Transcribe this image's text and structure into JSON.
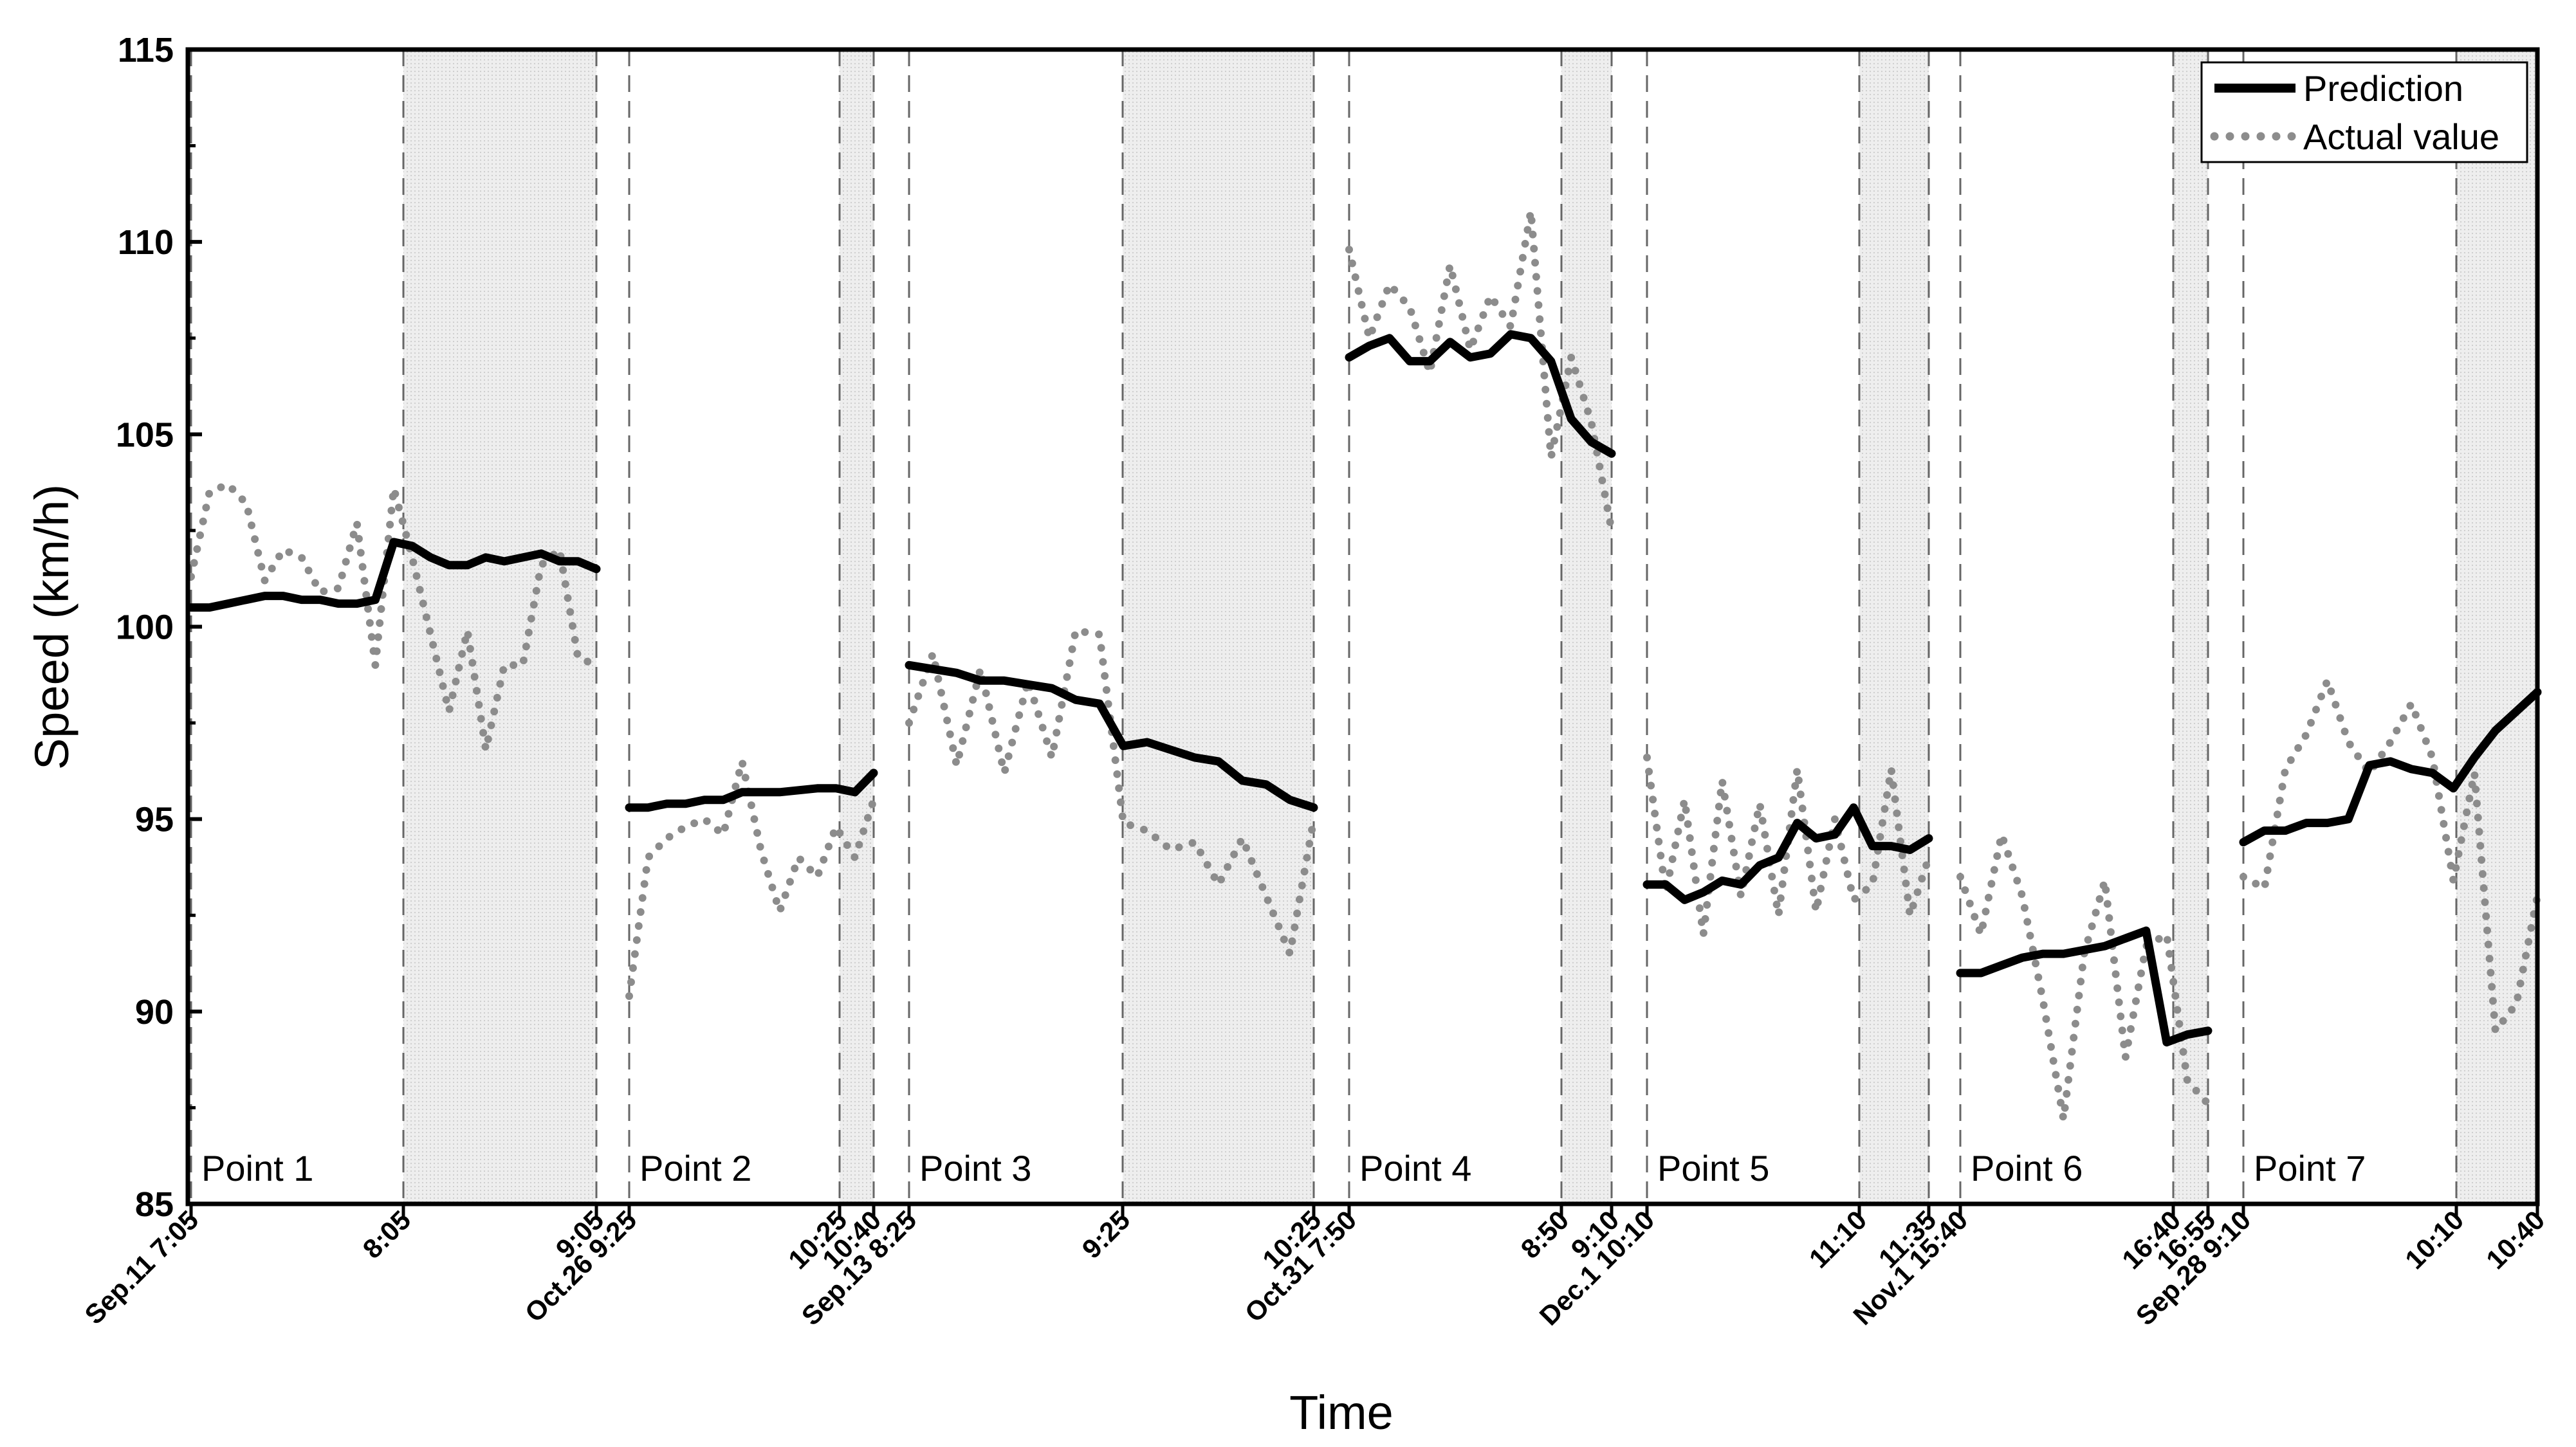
{
  "chart_data": {
    "type": "line",
    "xlabel": "Time",
    "ylabel": "Speed (km/h)",
    "ylim": [
      85,
      115
    ],
    "yticks": [
      "85",
      "90",
      "95",
      "100",
      "105",
      "110",
      "115"
    ],
    "grid": false,
    "legend": {
      "placement": "top-right",
      "entries": [
        {
          "name": "Prediction",
          "style": "solid"
        },
        {
          "name": "Actual value",
          "style": "dotted"
        }
      ]
    },
    "colors": {
      "prediction": "#000000",
      "actual": "#8c8c8c",
      "shade": "#e8e8e8"
    },
    "segments": [
      {
        "label": "Point 1",
        "ticks": [
          "Sep.11 7:05",
          "8:05",
          "9:05"
        ],
        "prediction": [
          100.5,
          100.5,
          100.6,
          100.7,
          100.8,
          100.8,
          100.7,
          100.7,
          100.6,
          100.6,
          100.7,
          102.2,
          102.1,
          101.8,
          101.6,
          101.6,
          101.8,
          101.7,
          101.8,
          101.9,
          101.7,
          101.7,
          101.5
        ],
        "actual": [
          101.3,
          103.5,
          103.7,
          103.2,
          101.2,
          102.0,
          101.8,
          100.9,
          101.0,
          102.7,
          99.0,
          103.6,
          101.8,
          99.8,
          97.8,
          99.9,
          96.8,
          99.0,
          99.0,
          101.6,
          102.0,
          99.2,
          99.0
        ]
      },
      {
        "label": "Point 2",
        "ticks": [
          "Oct.26 9:25",
          "10:25",
          "10:40"
        ],
        "prediction": [
          95.3,
          95.3,
          95.4,
          95.4,
          95.5,
          95.5,
          95.7,
          95.7,
          95.7,
          95.75,
          95.8,
          95.8,
          95.7,
          96.2
        ],
        "actual": [
          90.4,
          94.0,
          94.5,
          94.8,
          95.0,
          94.6,
          96.5,
          94.2,
          92.6,
          94.0,
          93.5,
          94.8,
          94.0,
          95.5
        ]
      },
      {
        "label": "Point 3",
        "ticks": [
          "Sep.13 8:25",
          "9:25",
          "10:25"
        ],
        "prediction": [
          99.0,
          98.9,
          98.8,
          98.6,
          98.6,
          98.5,
          98.4,
          98.1,
          98.0,
          96.9,
          97.0,
          96.8,
          96.6,
          96.5,
          96.0,
          95.9,
          95.5,
          95.3
        ],
        "actual": [
          97.5,
          99.3,
          96.4,
          98.9,
          96.2,
          98.6,
          96.6,
          99.9,
          99.8,
          94.9,
          94.7,
          94.2,
          94.4,
          93.3,
          94.5,
          93.0,
          91.5,
          95.0
        ]
      },
      {
        "label": "Point 4",
        "ticks": [
          "Oct.31 7:50",
          "8:50",
          "9:10"
        ],
        "prediction": [
          107.0,
          107.3,
          107.5,
          106.9,
          106.9,
          107.4,
          107.0,
          107.1,
          107.6,
          107.5,
          106.9,
          105.4,
          104.8,
          104.5
        ],
        "actual": [
          109.8,
          107.5,
          108.9,
          108.3,
          106.6,
          109.4,
          107.2,
          108.6,
          107.8,
          110.8,
          104.4,
          107.0,
          105.3,
          102.5
        ]
      },
      {
        "label": "Point 5",
        "ticks": [
          "Dec.1 10:10",
          "11:10",
          "11:35"
        ],
        "prediction": [
          93.3,
          93.3,
          92.9,
          93.1,
          93.4,
          93.3,
          93.8,
          94.0,
          94.9,
          94.5,
          94.6,
          95.3,
          94.3,
          94.3,
          94.2,
          94.5
        ],
        "actual": [
          96.6,
          93.1,
          95.5,
          92.0,
          96.0,
          93.0,
          95.4,
          92.5,
          96.3,
          92.6,
          95.0,
          92.9,
          93.3,
          96.3,
          92.5,
          94.0
        ]
      },
      {
        "label": "Point 6",
        "ticks": [
          "Nov.1 15:40",
          "16:40",
          "16:55"
        ],
        "prediction": [
          91.0,
          91.0,
          91.2,
          91.4,
          91.5,
          91.5,
          91.6,
          91.7,
          91.9,
          92.1,
          89.2,
          89.4,
          89.5
        ],
        "actual": [
          93.5,
          92.0,
          94.6,
          93.0,
          90.3,
          87.2,
          91.5,
          93.4,
          88.8,
          91.7,
          92.0,
          88.2,
          87.6
        ]
      },
      {
        "label": "Point 7",
        "ticks": [
          "Sep.28 9:10",
          "10:10",
          "10:40"
        ],
        "prediction": [
          94.4,
          94.7,
          94.7,
          94.9,
          94.9,
          95.0,
          96.4,
          96.5,
          96.3,
          96.2,
          95.8,
          96.6,
          97.3,
          97.8,
          98.3
        ],
        "actual": [
          93.5,
          93.2,
          96.3,
          97.2,
          98.6,
          97.0,
          96.2,
          97.0,
          98.0,
          96.6,
          93.4,
          96.2,
          89.5,
          90.2,
          93.0
        ]
      }
    ]
  }
}
